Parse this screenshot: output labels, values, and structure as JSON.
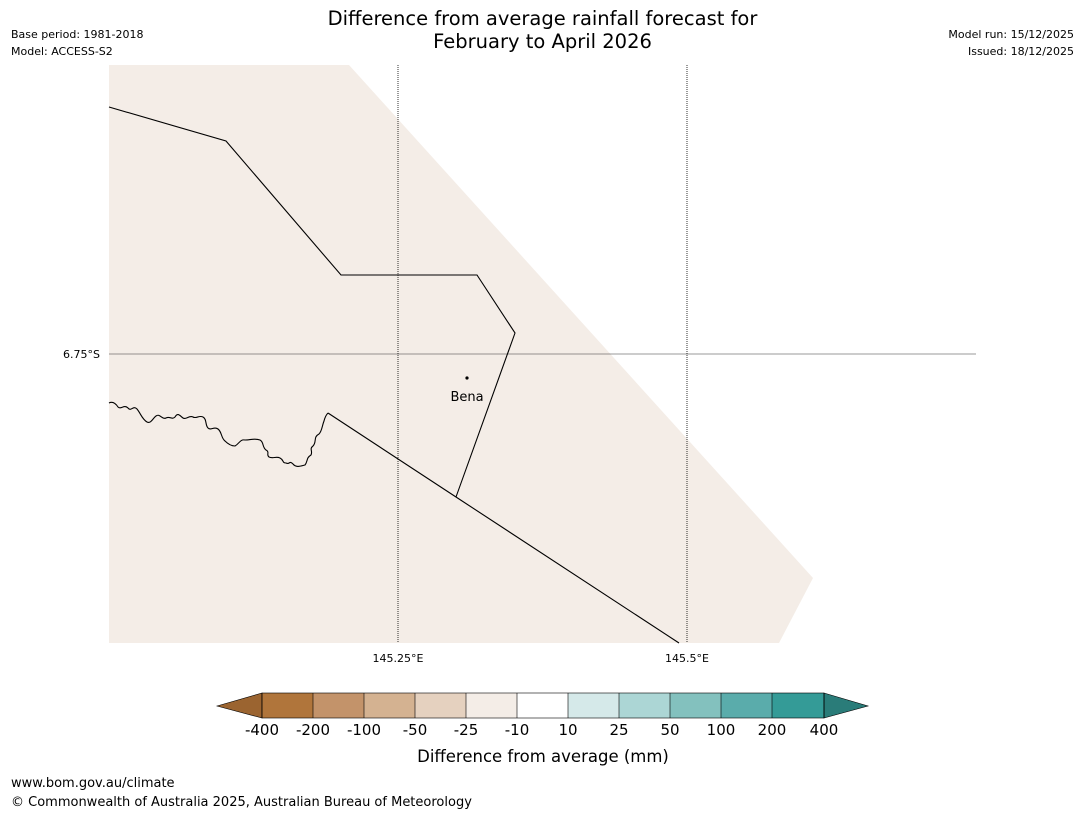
{
  "header": {
    "base_period": "Base period: 1981-2018",
    "model": "Model: ACCESS-S2",
    "model_run": "Model run: 15/12/2025",
    "issued": "Issued: 18/12/2025",
    "title_line1": "Difference from average rainfall forecast for",
    "title_line2": "February to April 2026"
  },
  "map": {
    "fill_color": "#f4ede7",
    "graticule": {
      "lat_label": "6.75°S",
      "lon_labels": [
        "145.25°E",
        "145.5°E"
      ]
    },
    "places": [
      {
        "name": "Bena"
      }
    ]
  },
  "colorbar": {
    "title": "Difference from average (mm)",
    "tick_labels": [
      "-400",
      "-200",
      "-100",
      "-50",
      "-25",
      "-10",
      "10",
      "25",
      "50",
      "100",
      "200",
      "400"
    ],
    "colors": [
      "#9b6430",
      "#b0753b",
      "#c3936a",
      "#d4b291",
      "#e5d1bf",
      "#f4ede7",
      "#ffffff",
      "#d5e9e9",
      "#acd6d5",
      "#83c1be",
      "#5aacab",
      "#349b97",
      "#2a7c79"
    ]
  },
  "footer": {
    "url": "www.bom.gov.au/climate",
    "copyright": "© Commonwealth of Australia 2025, Australian Bureau of Meteorology"
  }
}
